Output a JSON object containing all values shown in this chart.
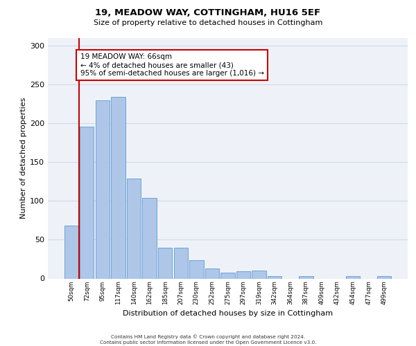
{
  "title": "19, MEADOW WAY, COTTINGHAM, HU16 5EF",
  "subtitle": "Size of property relative to detached houses in Cottingham",
  "xlabel": "Distribution of detached houses by size in Cottingham",
  "ylabel": "Number of detached properties",
  "categories": [
    "50sqm",
    "72sqm",
    "95sqm",
    "117sqm",
    "140sqm",
    "162sqm",
    "185sqm",
    "207sqm",
    "230sqm",
    "252sqm",
    "275sqm",
    "297sqm",
    "319sqm",
    "342sqm",
    "364sqm",
    "387sqm",
    "409sqm",
    "432sqm",
    "454sqm",
    "477sqm",
    "499sqm"
  ],
  "values": [
    68,
    196,
    230,
    234,
    129,
    104,
    40,
    40,
    24,
    13,
    8,
    9,
    10,
    3,
    0,
    3,
    0,
    0,
    3,
    0,
    3
  ],
  "bar_color": "#aec6e8",
  "bar_edgecolor": "#5b9bd5",
  "highlight_line_color": "#cc0000",
  "annotation_text": "19 MEADOW WAY: 66sqm\n← 4% of detached houses are smaller (43)\n95% of semi-detached houses are larger (1,016) →",
  "annotation_box_edgecolor": "#cc0000",
  "annotation_box_facecolor": "#ffffff",
  "ylim": [
    0,
    310
  ],
  "yticks": [
    0,
    50,
    100,
    150,
    200,
    250,
    300
  ],
  "grid_color": "#d0d8e8",
  "background_color": "#eef2f8",
  "footer_line1": "Contains HM Land Registry data © Crown copyright and database right 2024.",
  "footer_line2": "Contains public sector information licensed under the Open Government Licence v3.0."
}
